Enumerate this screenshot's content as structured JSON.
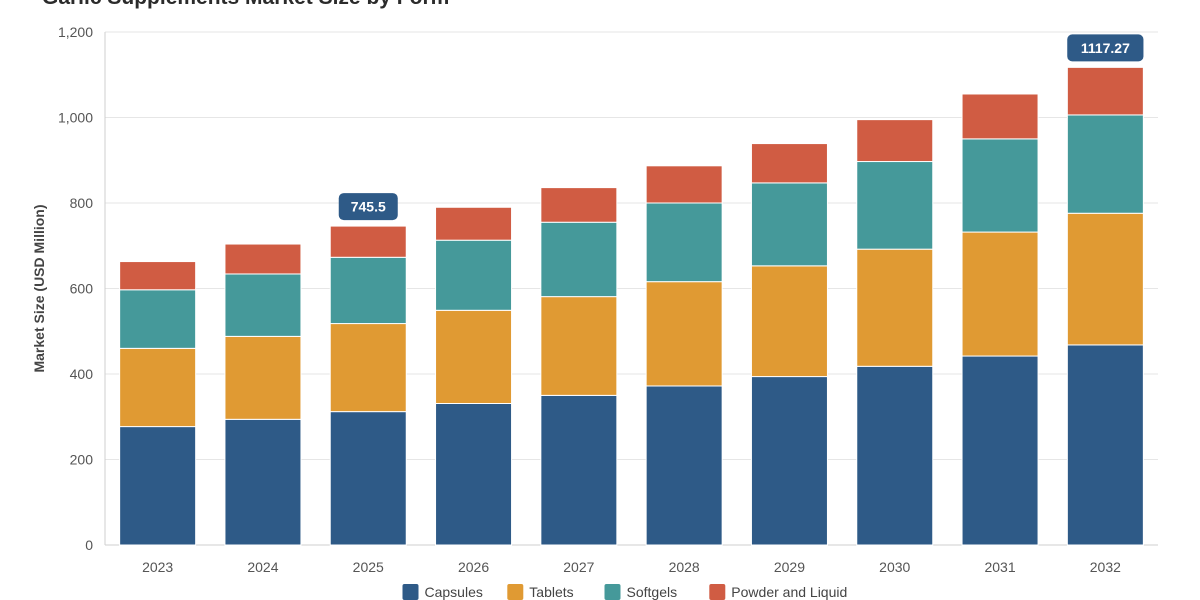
{
  "chart_data": {
    "type": "bar",
    "stacked": true,
    "title": "Garlic Supplements Market Size by Form",
    "ylabel": "Market Size (USD Million)",
    "xlabel": "",
    "ylim": [
      0,
      1200
    ],
    "yticks": [
      0,
      200,
      400,
      600,
      800,
      1000,
      1200
    ],
    "ytick_labels": [
      "0",
      "200",
      "400",
      "600",
      "800",
      "1,000",
      "1,200"
    ],
    "grid": true,
    "legend_position": "bottom",
    "categories": [
      "2023",
      "2024",
      "2025",
      "2026",
      "2027",
      "2028",
      "2029",
      "2030",
      "2031",
      "2032"
    ],
    "series": [
      {
        "name": "Capsules",
        "color": "#2e5a87",
        "values": [
          277,
          294,
          312,
          331,
          350,
          372,
          394,
          418,
          442,
          468
        ]
      },
      {
        "name": "Tablets",
        "color": "#e09a33",
        "values": [
          183,
          194,
          206,
          218,
          231,
          244,
          259,
          274,
          290,
          308
        ]
      },
      {
        "name": "Softgels",
        "color": "#45999a",
        "values": [
          137,
          146,
          155,
          164,
          174,
          184,
          194,
          205,
          218,
          230
        ]
      },
      {
        "name": "Powder and Liquid",
        "color": "#d05c43",
        "values": [
          66,
          70,
          73,
          77,
          81,
          87,
          92,
          98,
          105,
          111.27
        ]
      }
    ],
    "annotations": [
      {
        "category": "2025",
        "text": "745.5"
      },
      {
        "category": "2032",
        "text": "1117.27"
      }
    ]
  }
}
